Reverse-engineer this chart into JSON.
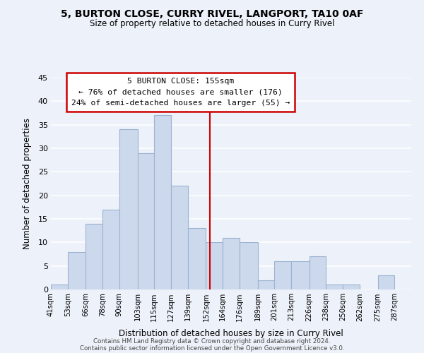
{
  "title": "5, BURTON CLOSE, CURRY RIVEL, LANGPORT, TA10 0AF",
  "subtitle": "Size of property relative to detached houses in Curry Rivel",
  "xlabel": "Distribution of detached houses by size in Curry Rivel",
  "ylabel": "Number of detached properties",
  "bar_color": "#ccd9ed",
  "bar_edge_color": "#9ab3d0",
  "bin_labels": [
    "41sqm",
    "53sqm",
    "66sqm",
    "78sqm",
    "90sqm",
    "103sqm",
    "115sqm",
    "127sqm",
    "139sqm",
    "152sqm",
    "164sqm",
    "176sqm",
    "189sqm",
    "201sqm",
    "213sqm",
    "226sqm",
    "238sqm",
    "250sqm",
    "262sqm",
    "275sqm",
    "287sqm"
  ],
  "bin_edges": [
    41,
    53,
    66,
    78,
    90,
    103,
    115,
    127,
    139,
    152,
    164,
    176,
    189,
    201,
    213,
    226,
    238,
    250,
    262,
    275,
    287,
    299
  ],
  "counts": [
    1,
    8,
    14,
    17,
    34,
    29,
    37,
    22,
    13,
    10,
    11,
    10,
    2,
    6,
    6,
    7,
    1,
    1,
    0,
    3,
    0
  ],
  "vline_x": 155,
  "annotation_title": "5 BURTON CLOSE: 155sqm",
  "annotation_line1": "← 76% of detached houses are smaller (176)",
  "annotation_line2": "24% of semi-detached houses are larger (55) →",
  "ylim": [
    0,
    45
  ],
  "yticks": [
    0,
    5,
    10,
    15,
    20,
    25,
    30,
    35,
    40,
    45
  ],
  "background_color": "#edf1f9",
  "grid_color": "#ffffff",
  "footer1": "Contains HM Land Registry data © Crown copyright and database right 2024.",
  "footer2": "Contains public sector information licensed under the Open Government Licence v3.0."
}
